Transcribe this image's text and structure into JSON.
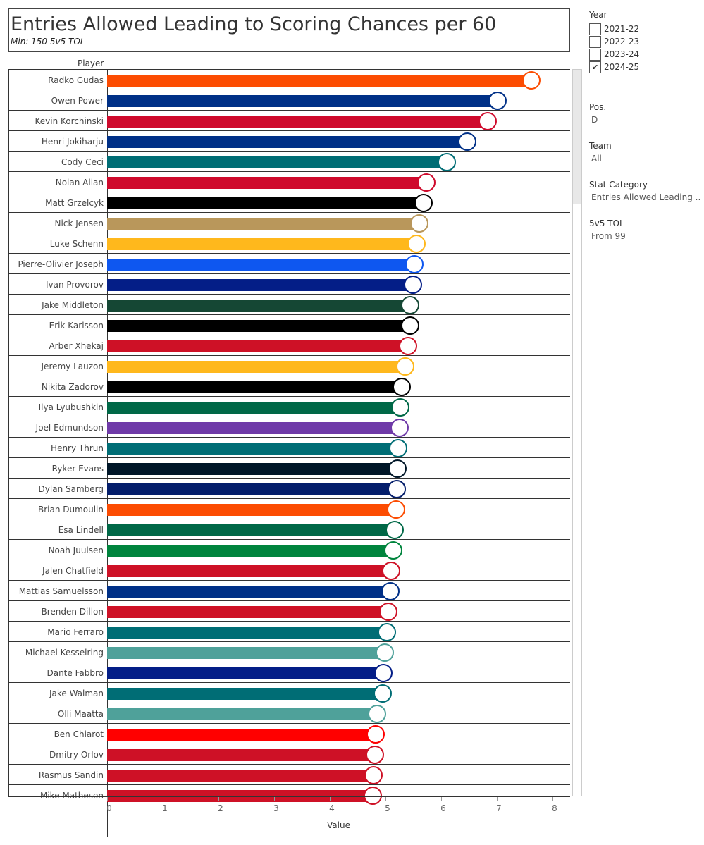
{
  "header": {
    "title": "Entries Allowed Leading to Scoring Chances per 60",
    "subtitle": "Min: 150 5v5 TOI",
    "player_column": "Player"
  },
  "filters": {
    "year": {
      "title": "Year",
      "options": [
        {
          "label": "2021-22",
          "checked": false
        },
        {
          "label": "2022-23",
          "checked": false
        },
        {
          "label": "2023-24",
          "checked": false
        },
        {
          "label": "2024-25",
          "checked": true
        }
      ]
    },
    "pos": {
      "title": "Pos.",
      "value": "D"
    },
    "team": {
      "title": "Team",
      "value": "All"
    },
    "stat": {
      "title": "Stat Category",
      "value": "Entries Allowed Leading .."
    },
    "toi": {
      "title": "5v5 TOI",
      "value": "From 99"
    }
  },
  "chart_data": {
    "type": "bar",
    "orientation": "horizontal",
    "title": "Entries Allowed Leading to Scoring Chances per 60",
    "subtitle": "Min: 150 5v5 TOI",
    "xlabel": "Value",
    "ylabel": "Player",
    "xlim": [
      0,
      8.3
    ],
    "xticks": [
      0,
      1,
      2,
      3,
      4,
      5,
      6,
      7,
      8
    ],
    "grid": false,
    "categories": [
      "Radko Gudas",
      "Owen Power",
      "Kevin Korchinski",
      "Henri Jokiharju",
      "Cody Ceci",
      "Nolan Allan",
      "Matt Grzelcyk",
      "Nick Jensen",
      "Luke Schenn",
      "Pierre-Olivier Joseph",
      "Ivan Provorov",
      "Jake Middleton",
      "Erik Karlsson",
      "Arber Xhekaj",
      "Jeremy Lauzon",
      "Nikita Zadorov",
      "Ilya Lyubushkin",
      "Joel Edmundson",
      "Henry Thrun",
      "Ryker Evans",
      "Dylan Samberg",
      "Brian Dumoulin",
      "Esa Lindell",
      "Noah Juulsen",
      "Jalen Chatfield",
      "Mattias Samuelsson",
      "Brenden Dillon",
      "Mario Ferraro",
      "Michael Kesselring",
      "Dante Fabbro",
      "Jake Walman",
      "Olli Maatta",
      "Ben Chiarot",
      "Dmitry Orlov",
      "Rasmus Sandin",
      "Mike Matheson"
    ],
    "values": [
      7.63,
      7.02,
      6.85,
      6.48,
      6.12,
      5.75,
      5.7,
      5.62,
      5.57,
      5.53,
      5.5,
      5.46,
      5.46,
      5.42,
      5.37,
      5.3,
      5.28,
      5.26,
      5.24,
      5.23,
      5.21,
      5.2,
      5.18,
      5.15,
      5.12,
      5.1,
      5.06,
      5.04,
      5.0,
      4.98,
      4.96,
      4.86,
      4.84,
      4.82,
      4.8,
      4.78
    ],
    "bar_colors": [
      "#FC4C02",
      "#003087",
      "#CF0A2C",
      "#003087",
      "#006D75",
      "#CF0A2C",
      "#000000",
      "#B9975B",
      "#FFB81C",
      "#0E57F0",
      "#041E87",
      "#154734",
      "#000000",
      "#CE1126",
      "#FFB81C",
      "#000000",
      "#006847",
      "#6F3AA8",
      "#006D75",
      "#001628",
      "#041E6B",
      "#FC4C02",
      "#006847",
      "#00843D",
      "#CE1126",
      "#003087",
      "#CE1126",
      "#006D75",
      "#4FA19A",
      "#041E87",
      "#006D75",
      "#4FA19A",
      "#FF0000",
      "#CE1126",
      "#CE1126",
      "#CE1126"
    ],
    "logo_icons": [
      "ducks-logo-icon",
      "sabres-logo-icon",
      "blackhawks-logo-icon",
      "sabres-logo-icon",
      "sharks-logo-icon",
      "blackhawks-logo-icon",
      "penguins-logo-icon",
      "senators-logo-icon",
      "predators-logo-icon",
      "blues-logo-icon",
      "bluejackets-logo-icon",
      "wild-logo-icon",
      "penguins-logo-icon",
      "canadiens-logo-icon",
      "predators-logo-icon",
      "bruins-logo-icon",
      "stars-logo-icon",
      "kings-logo-icon",
      "sharks-logo-icon",
      "kraken-logo-icon",
      "jets-logo-icon",
      "ducks-logo-icon",
      "stars-logo-icon",
      "canucks-logo-icon",
      "hurricanes-logo-icon",
      "sabres-logo-icon",
      "devils-logo-icon",
      "sharks-logo-icon",
      "utah-logo-icon",
      "bluejackets-logo-icon",
      "sharks-logo-icon",
      "utah-logo-icon",
      "redwings-logo-icon",
      "hurricanes-logo-icon",
      "capitals-logo-icon",
      "canadiens-logo-icon"
    ]
  }
}
